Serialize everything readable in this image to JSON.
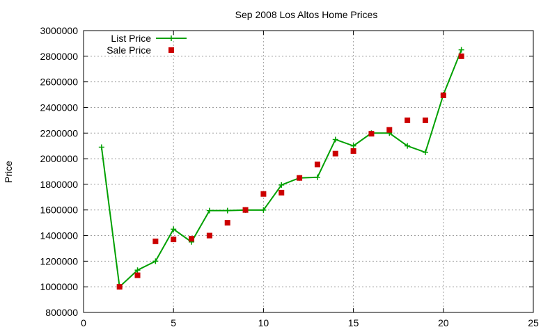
{
  "chart_data": {
    "type": "scatter",
    "title": "Sep 2008 Los Altos Home Prices",
    "xlabel": "",
    "ylabel": "Price",
    "xlim": [
      0,
      25
    ],
    "ylim": [
      800000,
      3000000
    ],
    "xticks": [
      "0",
      "5",
      "10",
      "15",
      "20",
      "25"
    ],
    "yticks": [
      "800000",
      "1000000",
      "1200000",
      "1400000",
      "1600000",
      "1800000",
      "2000000",
      "2200000",
      "2400000",
      "2600000",
      "2800000",
      "3000000"
    ],
    "grid": true,
    "legend_position": "top-left",
    "series": [
      {
        "name": "List Price",
        "style": "line+cross",
        "color": "#00a000",
        "points": [
          [
            1,
            2090000
          ],
          [
            2,
            1000000
          ],
          [
            3,
            1130000
          ],
          [
            4,
            1200000
          ],
          [
            5,
            1450000
          ],
          [
            6,
            1350000
          ],
          [
            7,
            1595000
          ],
          [
            8,
            1595000
          ],
          [
            9,
            1599000
          ],
          [
            10,
            1599000
          ],
          [
            11,
            1795000
          ],
          [
            12,
            1850000
          ],
          [
            13,
            1855000
          ],
          [
            14,
            2150000
          ],
          [
            15,
            2100000
          ],
          [
            16,
            2200000
          ],
          [
            17,
            2200000
          ],
          [
            18,
            2100000
          ],
          [
            19,
            2050000
          ],
          [
            20,
            2500000
          ],
          [
            21,
            2850000
          ]
        ]
      },
      {
        "name": "Sale Price",
        "style": "square",
        "color": "#cc0000",
        "points": [
          [
            2,
            1000000
          ],
          [
            3,
            1090000
          ],
          [
            4,
            1355000
          ],
          [
            5,
            1370000
          ],
          [
            6,
            1375000
          ],
          [
            7,
            1400000
          ],
          [
            8,
            1500000
          ],
          [
            9,
            1600000
          ],
          [
            10,
            1725000
          ],
          [
            11,
            1735000
          ],
          [
            12,
            1850000
          ],
          [
            13,
            1955000
          ],
          [
            14,
            2040000
          ],
          [
            15,
            2060000
          ],
          [
            16,
            2195000
          ],
          [
            17,
            2225000
          ],
          [
            18,
            2300000
          ],
          [
            19,
            2300000
          ],
          [
            20,
            2495000
          ],
          [
            21,
            2800000
          ]
        ]
      }
    ]
  }
}
